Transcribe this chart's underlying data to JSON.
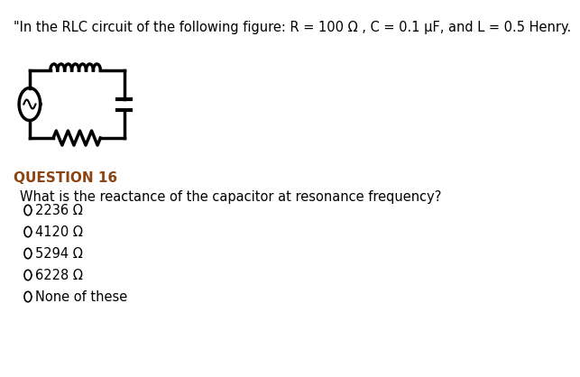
{
  "bg_color": "#ffffff",
  "header_text": "\"In the RLC circuit of the following figure: R = 100 Ω , C = 0.1 μF, and L = 0.5 Henry.",
  "question_label": "QUESTION 16",
  "question_text": "What is the reactance of the capacitor at resonance frequency?",
  "options": [
    "2236 Ω",
    "4120 Ω",
    "5294 Ω",
    "6228 Ω",
    "None of these"
  ],
  "header_fontsize": 10.5,
  "question_label_fontsize": 11,
  "question_text_fontsize": 10.5,
  "options_fontsize": 10.5,
  "text_color": "#000000",
  "question_label_color": "#8B4513"
}
